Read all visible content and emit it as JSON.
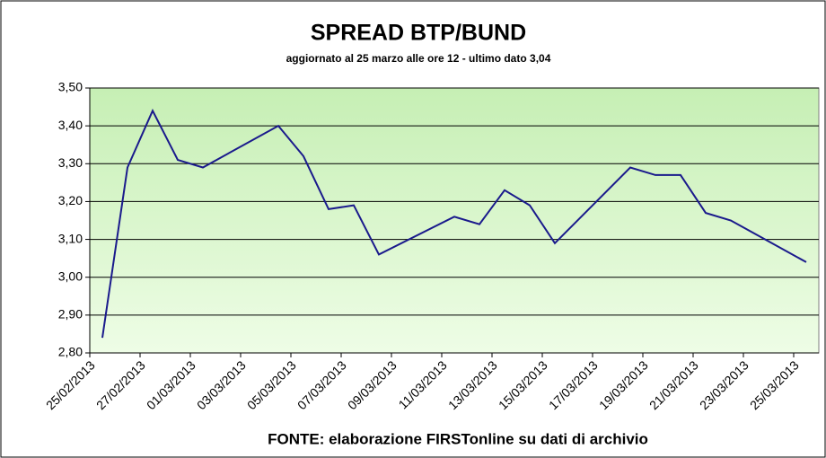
{
  "chart_data": {
    "type": "line",
    "title": "SPREAD  BTP/BUND",
    "subtitle": "aggiornato al 25 marzo alle ore 12 - ultimo dato 3,04",
    "source": "FONTE: elaborazione FIRSTonline su dati di archivio",
    "x": [
      "25/02/2013",
      "26/02/2013",
      "27/02/2013",
      "28/02/2013",
      "01/03/2013",
      "04/03/2013",
      "05/03/2013",
      "06/03/2013",
      "07/03/2013",
      "08/03/2013",
      "11/03/2013",
      "12/03/2013",
      "13/03/2013",
      "14/03/2013",
      "15/03/2013",
      "18/03/2013",
      "19/03/2013",
      "20/03/2013",
      "21/03/2013",
      "22/03/2013",
      "25/03/2013"
    ],
    "series": [
      {
        "color": "#1a1a8c",
        "values": [
          2.84,
          3.29,
          3.44,
          3.31,
          3.29,
          3.4,
          3.32,
          3.18,
          3.19,
          3.06,
          3.16,
          3.14,
          3.23,
          3.19,
          3.09,
          3.29,
          3.27,
          3.27,
          3.17,
          3.15,
          3.04
        ]
      }
    ],
    "xlim": [
      "25/02/2013",
      "26/03/2013"
    ],
    "xticks": [
      "25/02/2013",
      "27/02/2013",
      "01/03/2013",
      "03/03/2013",
      "05/03/2013",
      "07/03/2013",
      "09/03/2013",
      "11/03/2013",
      "13/03/2013",
      "15/03/2013",
      "17/03/2013",
      "19/03/2013",
      "21/03/2013",
      "23/03/2013",
      "25/03/2013"
    ],
    "ylim": [
      2.8,
      3.5
    ],
    "yticks": [
      {
        "value": 2.8,
        "label": "2,80"
      },
      {
        "value": 2.9,
        "label": "2,90"
      },
      {
        "value": 3.0,
        "label": "3,00"
      },
      {
        "value": 3.1,
        "label": "3,10"
      },
      {
        "value": 3.2,
        "label": "3,20"
      },
      {
        "value": 3.3,
        "label": "3,30"
      },
      {
        "value": 3.4,
        "label": "3,40"
      },
      {
        "value": 3.5,
        "label": "3,50"
      }
    ],
    "grid": true
  }
}
